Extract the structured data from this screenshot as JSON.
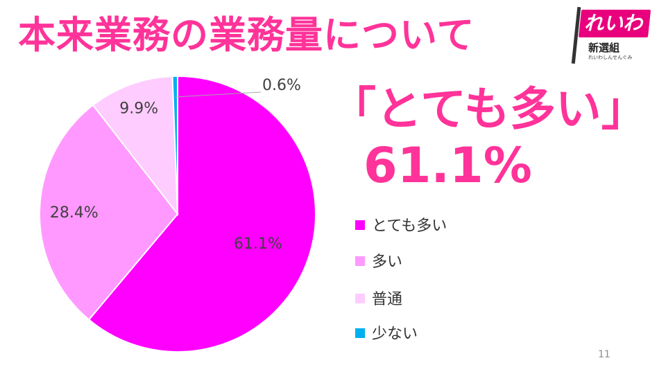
{
  "title": "本来業務の業務量について",
  "highlight": {
    "label": "「とても多い」",
    "value": "61.1%"
  },
  "logo": {
    "main": "れいわ",
    "sub": "新選組",
    "sub2": "れいわしんせんぐみ"
  },
  "page_number": "11",
  "colors": {
    "accent": "#ff3399",
    "logo": "#e8007d"
  },
  "chart_data": {
    "type": "pie",
    "title": "",
    "categories": [
      "とても多い",
      "多い",
      "普通",
      "少ない"
    ],
    "values": [
      61.1,
      28.4,
      9.9,
      0.6
    ],
    "labels": [
      "61.1%",
      "28.4%",
      "9.9%",
      "0.6%"
    ],
    "colors": [
      "#ff00ff",
      "#ff99ff",
      "#ffccff",
      "#00b0f0"
    ],
    "start": "12 o'clock",
    "direction": "clockwise",
    "legend_position": "right"
  }
}
